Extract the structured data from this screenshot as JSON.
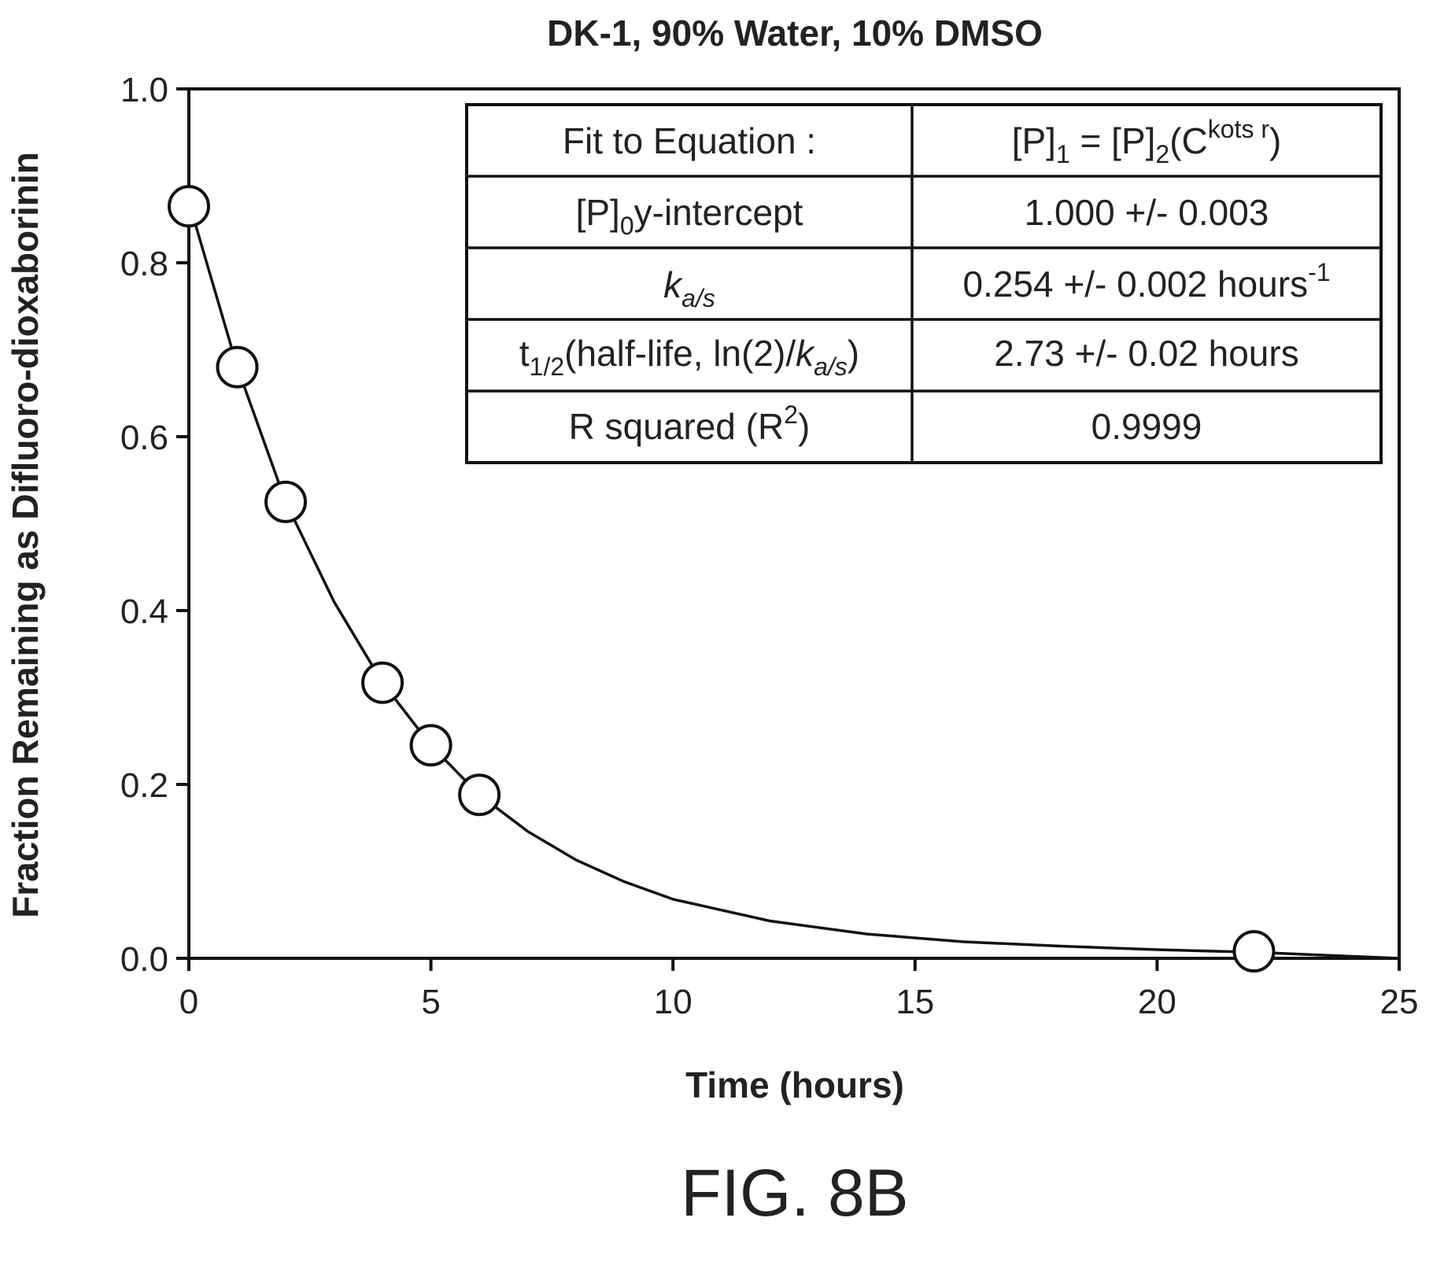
{
  "chart_data": {
    "type": "scatter",
    "title": "DK-1, 90% Water, 10% DMSO",
    "xlabel": "Time (hours)",
    "ylabel": "Fraction Remaining as Difluoro-dioxaborinin",
    "xlim": [
      0,
      25
    ],
    "ylim": [
      0,
      1.0
    ],
    "x_ticks": [
      "0",
      "5",
      "10",
      "15",
      "20",
      "25"
    ],
    "y_ticks": [
      "0.0",
      "0.2",
      "0.4",
      "0.6",
      "0.8",
      "1.0"
    ],
    "grid": false,
    "series": [
      {
        "style": "open-circle markers",
        "x": [
          0,
          1,
          2,
          4,
          5,
          6,
          22
        ],
        "y": [
          0.865,
          0.68,
          0.525,
          0.317,
          0.245,
          0.188,
          0.008
        ]
      },
      {
        "style": "fit curve",
        "x": [
          0,
          1,
          2,
          3,
          4,
          5,
          6,
          7,
          8,
          9,
          10,
          12,
          14,
          16,
          18,
          20,
          22,
          25
        ],
        "y": [
          0.87,
          0.68,
          0.525,
          0.41,
          0.317,
          0.245,
          0.188,
          0.146,
          0.113,
          0.088,
          0.068,
          0.043,
          0.028,
          0.019,
          0.014,
          0.01,
          0.007,
          0.0
        ]
      }
    ],
    "table": {
      "rows": [
        {
          "label": "Fit to Equation :",
          "value": "[P]1 = [P]2(Ckots r)"
        },
        {
          "label": "[P]0y-intercept",
          "value": "1.000 +/- 0.003"
        },
        {
          "label": "ka/s",
          "value": "0.254 +/- 0.002 hours-1"
        },
        {
          "label": "t1/2(half-life, ln(2)/ka/s)",
          "value": "2.73 +/- 0.02 hours"
        },
        {
          "label": "R squared (R2)",
          "value": "0.9999"
        }
      ]
    }
  },
  "figure_label": "FIG. 8B"
}
